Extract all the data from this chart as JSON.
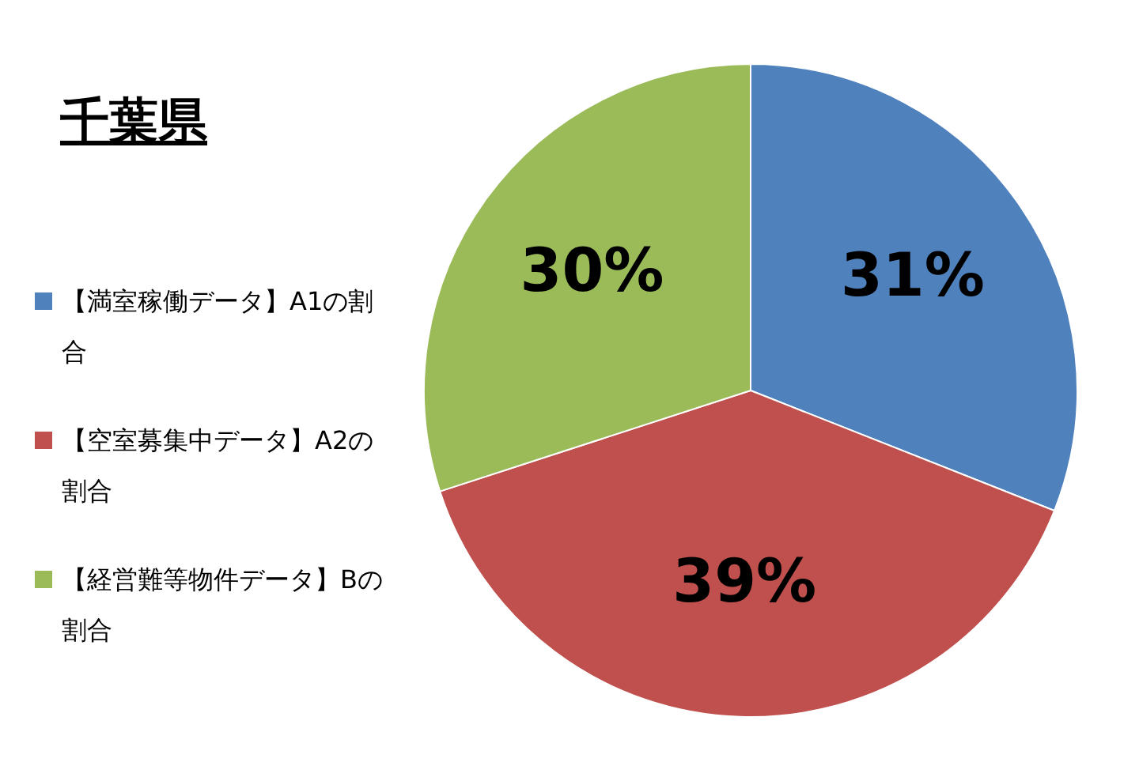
{
  "chart_data": {
    "type": "pie",
    "title": "千葉県",
    "categories": [
      "【満室稼働データ】A1の割合",
      "【空室募集中データ】A2の割合",
      "【経営難等物件データ】Bの割合"
    ],
    "values": [
      31,
      39,
      30
    ],
    "colors": [
      "#4f81bd",
      "#c0504d",
      "#9bbb59"
    ],
    "value_labels": [
      "31%",
      "39%",
      "30%"
    ],
    "legend": "left"
  }
}
